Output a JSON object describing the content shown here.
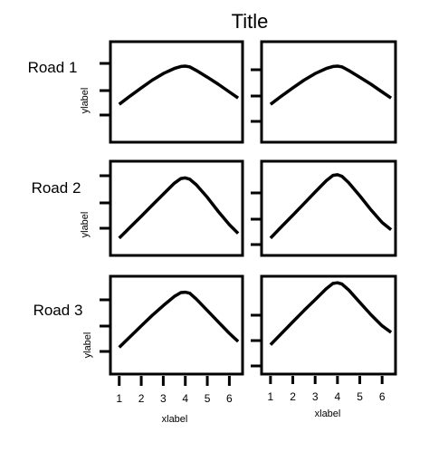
{
  "title": "Title",
  "row_labels": [
    "Road 1",
    "Road 2",
    "Road 3"
  ],
  "ylabel": "ylabel",
  "xlabel": "xlabel",
  "x_ticks": [
    "1",
    "2",
    "3",
    "4",
    "5",
    "6"
  ],
  "chart_data": {
    "type": "line",
    "title": "Title",
    "xlabel": "xlabel",
    "ylabel": "ylabel",
    "xlim": [
      0.6,
      6.6
    ],
    "ylim": [
      0,
      3
    ],
    "x": [
      1,
      1.5,
      2,
      2.5,
      3,
      3.5,
      3.8,
      4.0,
      4.2,
      4.5,
      5,
      5.5,
      6,
      6.4
    ],
    "panels": [
      {
        "row": "Road 1",
        "col": 1,
        "y": [
          1.13,
          1.38,
          1.62,
          1.85,
          2.05,
          2.2,
          2.26,
          2.27,
          2.25,
          2.14,
          1.94,
          1.73,
          1.5,
          1.32
        ]
      },
      {
        "row": "Road 1",
        "col": 2,
        "y": [
          1.13,
          1.38,
          1.62,
          1.85,
          2.05,
          2.2,
          2.26,
          2.27,
          2.25,
          2.14,
          1.94,
          1.73,
          1.5,
          1.32
        ]
      },
      {
        "row": "Road 2",
        "col": 1,
        "y": [
          0.55,
          0.9,
          1.25,
          1.6,
          1.95,
          2.3,
          2.45,
          2.47,
          2.43,
          2.25,
          1.85,
          1.4,
          0.98,
          0.7
        ]
      },
      {
        "row": "Road 2",
        "col": 2,
        "y": [
          0.55,
          0.92,
          1.28,
          1.65,
          2.02,
          2.38,
          2.55,
          2.57,
          2.52,
          2.32,
          1.9,
          1.45,
          1.05,
          0.82
        ]
      },
      {
        "row": "Road 3",
        "col": 1,
        "y": [
          0.82,
          1.15,
          1.48,
          1.8,
          2.1,
          2.38,
          2.5,
          2.51,
          2.48,
          2.3,
          1.95,
          1.6,
          1.25,
          1.0
        ]
      },
      {
        "row": "Road 3",
        "col": 2,
        "y": [
          0.9,
          1.25,
          1.6,
          1.95,
          2.28,
          2.62,
          2.78,
          2.8,
          2.76,
          2.58,
          2.2,
          1.82,
          1.48,
          1.28
        ]
      }
    ],
    "grid": false,
    "legend": "none"
  }
}
